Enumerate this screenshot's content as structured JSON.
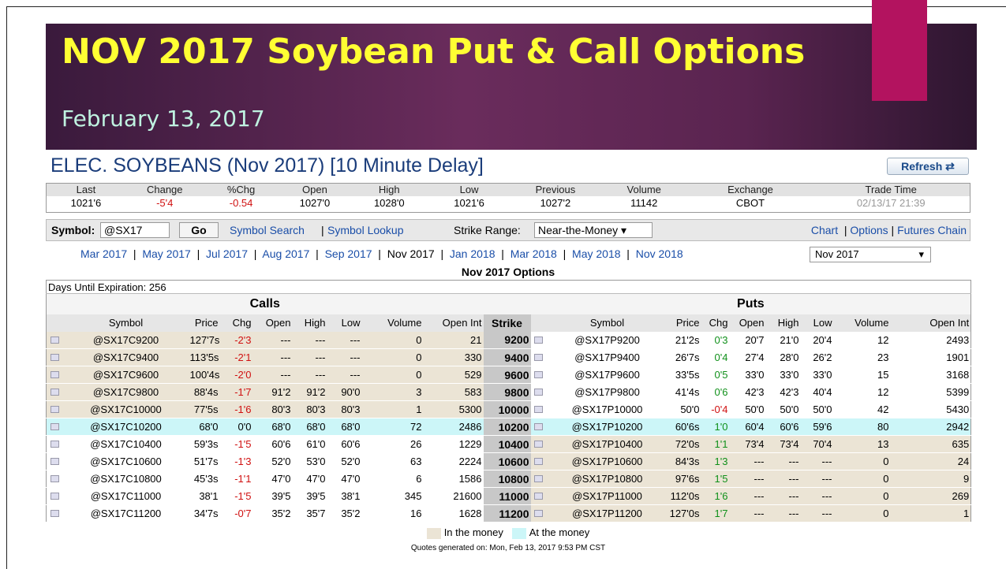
{
  "slide": {
    "title": "NOV 2017 Soybean Put & Call Options",
    "subtitle": "February 13, 2017"
  },
  "header": {
    "title": "ELEC. SOYBEANS  (Nov  2017) [10 Minute Delay]",
    "refresh": "Refresh"
  },
  "quote": {
    "headers": [
      "Last",
      "Change",
      "%Chg",
      "Open",
      "High",
      "Low",
      "Previous",
      "Volume",
      "Exchange",
      "Trade Time"
    ],
    "values": [
      "1021'6",
      "-5'4",
      "-0.54",
      "1027'0",
      "1028'0",
      "1021'6",
      "1027'2",
      "11142",
      "CBOT",
      "02/13/17 21:39"
    ]
  },
  "toolbar": {
    "symbol_label": "Symbol:",
    "symbol_value": "@SX17",
    "go": "Go",
    "links": [
      "Symbol Search",
      "Symbol Lookup"
    ],
    "strike_label": "Strike Range:",
    "strike_value": "Near-the-Money",
    "right_links": [
      "Chart",
      "Options",
      "Futures Chain"
    ]
  },
  "months": {
    "items": [
      "Mar 2017",
      "May 2017",
      "Jul 2017",
      "Aug 2017",
      "Sep 2017",
      "Nov 2017",
      "Jan 2018",
      "Mar 2018",
      "May 2018",
      "Nov 2018"
    ],
    "selected": "Nov 2017"
  },
  "options": {
    "title": "Nov 2017 Options",
    "days": "Days Until Expiration: 256",
    "calls_label": "Calls",
    "puts_label": "Puts",
    "call_columns": [
      "Symbol",
      "Price",
      "Chg",
      "Open",
      "High",
      "Low",
      "Volume",
      "Open Int"
    ],
    "strike_column": "Strike",
    "put_columns": [
      "Symbol",
      "Price",
      "Chg",
      "Open",
      "High",
      "Low",
      "Volume",
      "Open Int"
    ],
    "rows": [
      {
        "strike": "9200",
        "call": [
          "@SX17C9200",
          "127'7s",
          "-2'3",
          "---",
          "---",
          "---",
          "0",
          "21"
        ],
        "put": [
          "@SX17P9200",
          "21'2s",
          "0'3",
          "20'7",
          "21'0",
          "20'4",
          "12",
          "2493"
        ]
      },
      {
        "strike": "9400",
        "call": [
          "@SX17C9400",
          "113'5s",
          "-2'1",
          "---",
          "---",
          "---",
          "0",
          "330"
        ],
        "put": [
          "@SX17P9400",
          "26'7s",
          "0'4",
          "27'4",
          "28'0",
          "26'2",
          "23",
          "1901"
        ]
      },
      {
        "strike": "9600",
        "call": [
          "@SX17C9600",
          "100'4s",
          "-2'0",
          "---",
          "---",
          "---",
          "0",
          "529"
        ],
        "put": [
          "@SX17P9600",
          "33'5s",
          "0'5",
          "33'0",
          "33'0",
          "33'0",
          "15",
          "3168"
        ]
      },
      {
        "strike": "9800",
        "call": [
          "@SX17C9800",
          "88'4s",
          "-1'7",
          "91'2",
          "91'2",
          "90'0",
          "3",
          "583"
        ],
        "put": [
          "@SX17P9800",
          "41'4s",
          "0'6",
          "42'3",
          "42'3",
          "40'4",
          "12",
          "5399"
        ]
      },
      {
        "strike": "10000",
        "call": [
          "@SX17C10000",
          "77'5s",
          "-1'6",
          "80'3",
          "80'3",
          "80'3",
          "1",
          "5300"
        ],
        "put": [
          "@SX17P10000",
          "50'0",
          "-0'4",
          "50'0",
          "50'0",
          "50'0",
          "42",
          "5430"
        ]
      },
      {
        "strike": "10200",
        "call": [
          "@SX17C10200",
          "68'0",
          "0'0",
          "68'0",
          "68'0",
          "68'0",
          "72",
          "2486"
        ],
        "put": [
          "@SX17P10200",
          "60'6s",
          "1'0",
          "60'4",
          "60'6",
          "59'6",
          "80",
          "2942"
        ]
      },
      {
        "strike": "10400",
        "call": [
          "@SX17C10400",
          "59'3s",
          "-1'5",
          "60'6",
          "61'0",
          "60'6",
          "26",
          "1229"
        ],
        "put": [
          "@SX17P10400",
          "72'0s",
          "1'1",
          "73'4",
          "73'4",
          "70'4",
          "13",
          "635"
        ]
      },
      {
        "strike": "10600",
        "call": [
          "@SX17C10600",
          "51'7s",
          "-1'3",
          "52'0",
          "53'0",
          "52'0",
          "63",
          "2224"
        ],
        "put": [
          "@SX17P10600",
          "84'3s",
          "1'3",
          "---",
          "---",
          "---",
          "0",
          "24"
        ]
      },
      {
        "strike": "10800",
        "call": [
          "@SX17C10800",
          "45'3s",
          "-1'1",
          "47'0",
          "47'0",
          "47'0",
          "6",
          "1586"
        ],
        "put": [
          "@SX17P10800",
          "97'6s",
          "1'5",
          "---",
          "---",
          "---",
          "0",
          "9"
        ]
      },
      {
        "strike": "11000",
        "call": [
          "@SX17C11000",
          "38'1",
          "-1'5",
          "39'5",
          "39'5",
          "38'1",
          "345",
          "21600"
        ],
        "put": [
          "@SX17P11000",
          "112'0s",
          "1'6",
          "---",
          "---",
          "---",
          "0",
          "269"
        ]
      },
      {
        "strike": "11200",
        "call": [
          "@SX17C11200",
          "34'7s",
          "-0'7",
          "35'2",
          "35'7",
          "35'2",
          "16",
          "1628"
        ],
        "put": [
          "@SX17P11200",
          "127'0s",
          "1'7",
          "---",
          "---",
          "---",
          "0",
          "1"
        ]
      }
    ]
  },
  "legend": [
    "In the money",
    "At the money"
  ],
  "footer": "Quotes generated on: Mon, Feb 13, 2017 9:53 PM CST"
}
